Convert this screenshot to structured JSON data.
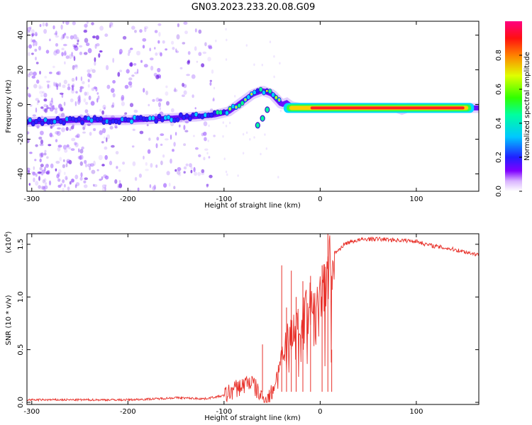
{
  "title": "GN03.2023.233.20.08.G09",
  "chart_data": [
    {
      "type": "heatmap",
      "title": "GN03.2023.233.20.08.G09",
      "xlabel": "Height of straight line (km)",
      "ylabel": "Frequency (Hz)",
      "xlim": [
        -305,
        165
      ],
      "ylim": [
        -50,
        48
      ],
      "x_ticks": [
        -300,
        -200,
        -100,
        0,
        100
      ],
      "x_tick_labels": [
        "-300",
        "-200",
        "-100",
        "0",
        "100"
      ],
      "y_ticks": [
        -40,
        -20,
        0,
        20,
        40
      ],
      "y_tick_labels": [
        "-40",
        "-20",
        "0",
        "20",
        "40"
      ],
      "colorbar": {
        "label": "Normalized spectral amplitude",
        "range": [
          0,
          1
        ],
        "ticks": [
          0.0,
          0.2,
          0.4,
          0.6,
          0.8
        ],
        "tick_labels": [
          "0.0",
          "0.2",
          "0.4",
          "0.6",
          "0.8"
        ],
        "colors": [
          "#ffffff",
          "#8000ff",
          "#0000ff",
          "#00ffff",
          "#00ff00",
          "#ffff00",
          "#ff8000",
          "#ff0000",
          "#ff0080"
        ]
      },
      "ridge": {
        "x": [
          -300,
          -250,
          -200,
          -160,
          -130,
          -110,
          -95,
          -80,
          -70,
          -60,
          -50,
          -45,
          -40,
          -35,
          -30,
          -20,
          0,
          50,
          80,
          85,
          90,
          100,
          130,
          160
        ],
        "y": [
          -10,
          -9,
          -9,
          -8,
          -7,
          -6,
          -4,
          2,
          6,
          8,
          6,
          3,
          0,
          1,
          -1,
          -2,
          -2,
          -2,
          -2,
          -3,
          -2,
          -2,
          -2,
          -2
        ]
      },
      "side_branch": {
        "x": [
          -65,
          -60,
          -55
        ],
        "y": [
          -12,
          -8,
          -3
        ]
      },
      "noise_region": {
        "x_min": -305,
        "x_max": -120
      }
    },
    {
      "type": "line",
      "xlabel": "Height of straight line (km)",
      "ylabel": "SNR (10 * v/v)",
      "y_multiplier_label": "(x10",
      "y_multiplier_exp": "4",
      "y_multiplier_close": ")",
      "xlim": [
        -305,
        165
      ],
      "ylim": [
        -0.02,
        1.6
      ],
      "x_ticks": [
        -300,
        -200,
        -100,
        0,
        100
      ],
      "x_tick_labels": [
        "-300",
        "-200",
        "-100",
        "0",
        "100"
      ],
      "y_ticks": [
        0.0,
        0.5,
        1.0,
        1.5
      ],
      "y_tick_labels": [
        "0.0",
        "0.5",
        "1.0",
        "1.5"
      ],
      "series": [
        {
          "name": "SNR",
          "color": "#e8312a",
          "x": [
            -305,
            -250,
            -200,
            -170,
            -150,
            -120,
            -100,
            -90,
            -80,
            -75,
            -70,
            -65,
            -60,
            -55,
            -50,
            -45,
            -40,
            -35,
            -30,
            -25,
            -20,
            -15,
            -10,
            -5,
            0,
            5,
            10,
            15,
            20,
            25,
            30,
            40,
            50,
            60,
            80,
            100,
            110,
            120,
            140,
            165
          ],
          "y": [
            0.02,
            0.02,
            0.02,
            0.03,
            0.04,
            0.03,
            0.06,
            0.12,
            0.16,
            0.2,
            0.18,
            0.1,
            0.04,
            0.02,
            0.1,
            0.25,
            0.45,
            0.6,
            0.65,
            0.7,
            0.72,
            0.85,
            0.9,
            0.95,
            1.05,
            1.2,
            1.4,
            1.42,
            1.45,
            1.5,
            1.52,
            1.54,
            1.55,
            1.55,
            1.54,
            1.53,
            1.5,
            1.48,
            1.45,
            1.4
          ]
        }
      ],
      "noise_spikes": [
        {
          "x": -60,
          "y": 0.55
        },
        {
          "x": -40,
          "y": 1.3
        },
        {
          "x": -35,
          "y": 0.9
        },
        {
          "x": -30,
          "y": 1.25
        },
        {
          "x": -25,
          "y": 1.0
        },
        {
          "x": -18,
          "y": 1.15
        },
        {
          "x": -10,
          "y": 1.2
        },
        {
          "x": 2,
          "y": 1.3
        },
        {
          "x": 8,
          "y": 1.6
        },
        {
          "x": 12,
          "y": 0.5
        }
      ]
    }
  ]
}
